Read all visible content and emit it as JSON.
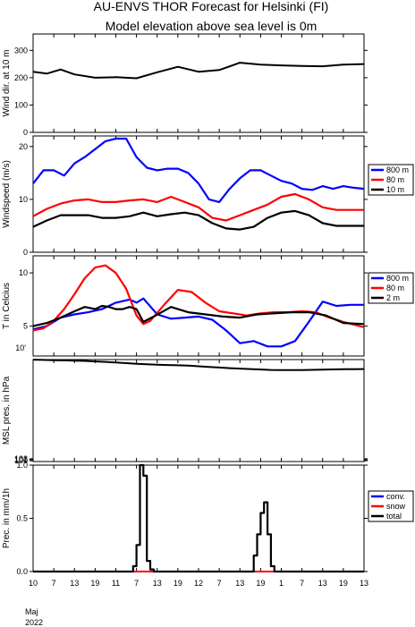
{
  "title_line1": "AU-ENVS THOR Forecast for Helsinki (FI)",
  "title_line2": "Model elevation above sea level is    0m",
  "x_axis": {
    "tick_labels": [
      "10",
      "7",
      "13",
      "19",
      "11",
      "7",
      "13",
      "19",
      "12",
      "7",
      "13",
      "19",
      "1",
      "7",
      "13",
      "19",
      "13"
    ],
    "tick_hours": [
      0,
      6,
      12,
      18,
      24,
      30,
      36,
      42,
      48,
      54,
      60,
      66,
      72,
      78,
      84,
      90,
      96
    ],
    "month_label": "Maj",
    "year_label": "2022"
  },
  "chart_data": [
    {
      "type": "line",
      "ylabel": "Wind dir. at 10 m",
      "ylim": [
        0,
        360
      ],
      "yticks": [
        0,
        100,
        200,
        300
      ],
      "series": [
        {
          "color": "#000000",
          "x": [
            0,
            4,
            8,
            12,
            18,
            24,
            30,
            36,
            42,
            48,
            54,
            60,
            66,
            72,
            78,
            84,
            90,
            96
          ],
          "y": [
            222,
            215,
            230,
            212,
            200,
            202,
            198,
            220,
            240,
            222,
            228,
            255,
            248,
            245,
            243,
            242,
            248,
            250
          ]
        }
      ]
    },
    {
      "type": "line",
      "ylabel": "Windspeed (m/s)",
      "ylim": [
        0,
        22
      ],
      "yticks": [
        0,
        10,
        20
      ],
      "legend": [
        "800 m",
        "80 m",
        "10 m"
      ],
      "series": [
        {
          "name": "800 m",
          "color": "#0000ff",
          "x": [
            0,
            3,
            6,
            9,
            12,
            15,
            18,
            21,
            24,
            27,
            30,
            33,
            36,
            39,
            42,
            45,
            48,
            51,
            54,
            57,
            60,
            63,
            66,
            69,
            72,
            75,
            78,
            81,
            84,
            87,
            90,
            93,
            96
          ],
          "y": [
            13,
            15.5,
            15.5,
            14.5,
            16.8,
            18,
            19.5,
            21,
            21.5,
            21.5,
            18,
            16,
            15.5,
            15.8,
            15.8,
            15,
            13,
            10,
            9.5,
            12,
            14,
            15.5,
            15.5,
            14.5,
            13.5,
            13,
            12,
            11.8,
            12.5,
            12,
            12.5,
            12.2,
            12
          ]
        },
        {
          "name": "80 m",
          "color": "#ff0000",
          "x": [
            0,
            4,
            8,
            12,
            16,
            20,
            24,
            28,
            32,
            36,
            40,
            44,
            48,
            52,
            56,
            60,
            64,
            68,
            72,
            76,
            80,
            84,
            88,
            92,
            96
          ],
          "y": [
            6.8,
            8.2,
            9.2,
            9.8,
            10,
            9.5,
            9.5,
            9.8,
            10,
            9.5,
            10.5,
            9.5,
            8.5,
            6.5,
            6,
            7,
            8,
            9,
            10.5,
            11,
            10,
            8.5,
            8,
            8,
            8
          ]
        },
        {
          "name": "10 m",
          "color": "#000000",
          "x": [
            0,
            4,
            8,
            12,
            16,
            20,
            24,
            28,
            32,
            36,
            40,
            44,
            48,
            52,
            56,
            60,
            64,
            68,
            72,
            76,
            80,
            84,
            88,
            92,
            96
          ],
          "y": [
            4.8,
            6,
            7,
            7,
            7,
            6.5,
            6.5,
            6.8,
            7.5,
            6.8,
            7.2,
            7.5,
            7,
            5.5,
            4.5,
            4.3,
            4.8,
            6.5,
            7.5,
            7.8,
            7,
            5.5,
            5,
            5,
            5
          ]
        }
      ]
    },
    {
      "type": "line",
      "ylabel": "T in Celcius",
      "ylim": [
        2.2,
        11.6
      ],
      "yticks": [
        5,
        10
      ],
      "ytick_label_offset": "10'",
      "legend": [
        "800 m",
        "80 m",
        "2 m"
      ],
      "series": [
        {
          "name": "800 m",
          "color": "#0000ff",
          "x": [
            0,
            4,
            8,
            12,
            16,
            20,
            24,
            28,
            30,
            32,
            36,
            40,
            44,
            48,
            52,
            56,
            60,
            64,
            68,
            72,
            76,
            80,
            84,
            88,
            92,
            96
          ],
          "y": [
            4.7,
            5,
            5.8,
            6.1,
            6.3,
            6.6,
            7.2,
            7.5,
            7.2,
            7.6,
            6.1,
            5.7,
            5.8,
            5.9,
            5.6,
            4.6,
            3.4,
            3.6,
            3.1,
            3.1,
            3.6,
            5.4,
            7.3,
            6.9,
            7.0,
            7.0
          ]
        },
        {
          "name": "80 m",
          "color": "#ff0000",
          "x": [
            0,
            3,
            6,
            9,
            12,
            15,
            18,
            21,
            24,
            27,
            30,
            32,
            34,
            38,
            42,
            46,
            50,
            54,
            58,
            62,
            66,
            70,
            74,
            78,
            82,
            86,
            90,
            96
          ],
          "y": [
            4.6,
            4.8,
            5.5,
            6.6,
            8,
            9.5,
            10.5,
            10.7,
            10,
            8.5,
            6,
            5.2,
            5.5,
            7,
            8.4,
            8.2,
            7.2,
            6.4,
            6.2,
            6,
            6.2,
            6.3,
            6.3,
            6.4,
            6.3,
            5.8,
            5.4,
            4.9
          ]
        },
        {
          "name": "2 m",
          "color": "#000000",
          "x": [
            0,
            4,
            8,
            12,
            15,
            18,
            20,
            22,
            24,
            26,
            28,
            30,
            32,
            35,
            40,
            45,
            50,
            55,
            60,
            65,
            70,
            75,
            80,
            85,
            90,
            96
          ],
          "y": [
            5,
            5.3,
            5.8,
            6.4,
            6.8,
            6.6,
            6.9,
            6.8,
            6.6,
            6.6,
            6.8,
            6.6,
            5.4,
            5.9,
            6.8,
            6.3,
            6.1,
            5.9,
            5.8,
            6.1,
            6.2,
            6.3,
            6.3,
            6.0,
            5.3,
            5.2
          ]
        }
      ]
    },
    {
      "type": "line",
      "ylabel": "MSL pres. in hPa",
      "ylim": [
        999.2,
        1102.6
      ],
      "yticks": [
        1000,
        1001,
        1002
      ],
      "ytick_labels": [
        "100",
        "101",
        "102"
      ],
      "series": [
        {
          "color": "#000000",
          "x": [
            0,
            3,
            6,
            9,
            12,
            15,
            18,
            21,
            24,
            27,
            30,
            33,
            36,
            39,
            42,
            45,
            48,
            51,
            54,
            57,
            60,
            63,
            66,
            69,
            72,
            75,
            78,
            81,
            84,
            87,
            90,
            93,
            96
          ],
          "y": [
            1102.5,
            1102.2,
            1102.0,
            1101.8,
            1101.5,
            1101.2,
            1100.7,
            1100.2,
            1099.6,
            1099.0,
            1098.3,
            1097.9,
            1097.4,
            1097.1,
            1096.8,
            1096.4,
            1095.8,
            1095.1,
            1094.5,
            1093.9,
            1093.4,
            1093.0,
            1092.5,
            1092.1,
            1091.9,
            1091.9,
            1092.0,
            1092.2,
            1092.4,
            1092.6,
            1092.8,
            1092.9,
            1093.0
          ]
        }
      ]
    },
    {
      "type": "line",
      "ylabel": "Prec. in mm/1h",
      "ylim": [
        0,
        1.0
      ],
      "yticks": [
        0,
        0.5,
        1.0
      ],
      "ytick_labels": [
        "0.0",
        "0.5",
        "1.0"
      ],
      "legend": [
        "conv.",
        "snow",
        "total"
      ],
      "series": [
        {
          "name": "conv.",
          "color": "#0000ff",
          "x": [
            0,
            96
          ],
          "y": [
            0.0,
            0.0
          ]
        },
        {
          "name": "snow",
          "color": "#ff0000",
          "x": [
            0,
            96
          ],
          "y": [
            0.0,
            0.0
          ]
        },
        {
          "name": "total",
          "color": "#000000",
          "x": [
            0,
            29,
            29,
            30,
            30,
            31,
            31,
            32,
            32,
            33,
            33,
            34,
            34,
            35,
            35,
            36,
            36,
            64,
            64,
            65,
            65,
            66,
            66,
            67,
            67,
            68,
            68,
            69,
            69,
            70,
            70,
            96
          ],
          "y": [
            0,
            0,
            0.05,
            0.05,
            0.25,
            0.25,
            1.0,
            1.0,
            0.9,
            0.9,
            0.1,
            0.1,
            0.02,
            0.02,
            0,
            0,
            0,
            0,
            0.15,
            0.15,
            0.35,
            0.35,
            0.55,
            0.55,
            0.65,
            0.65,
            0.35,
            0.35,
            0.05,
            0.05,
            0,
            0
          ]
        }
      ]
    }
  ]
}
